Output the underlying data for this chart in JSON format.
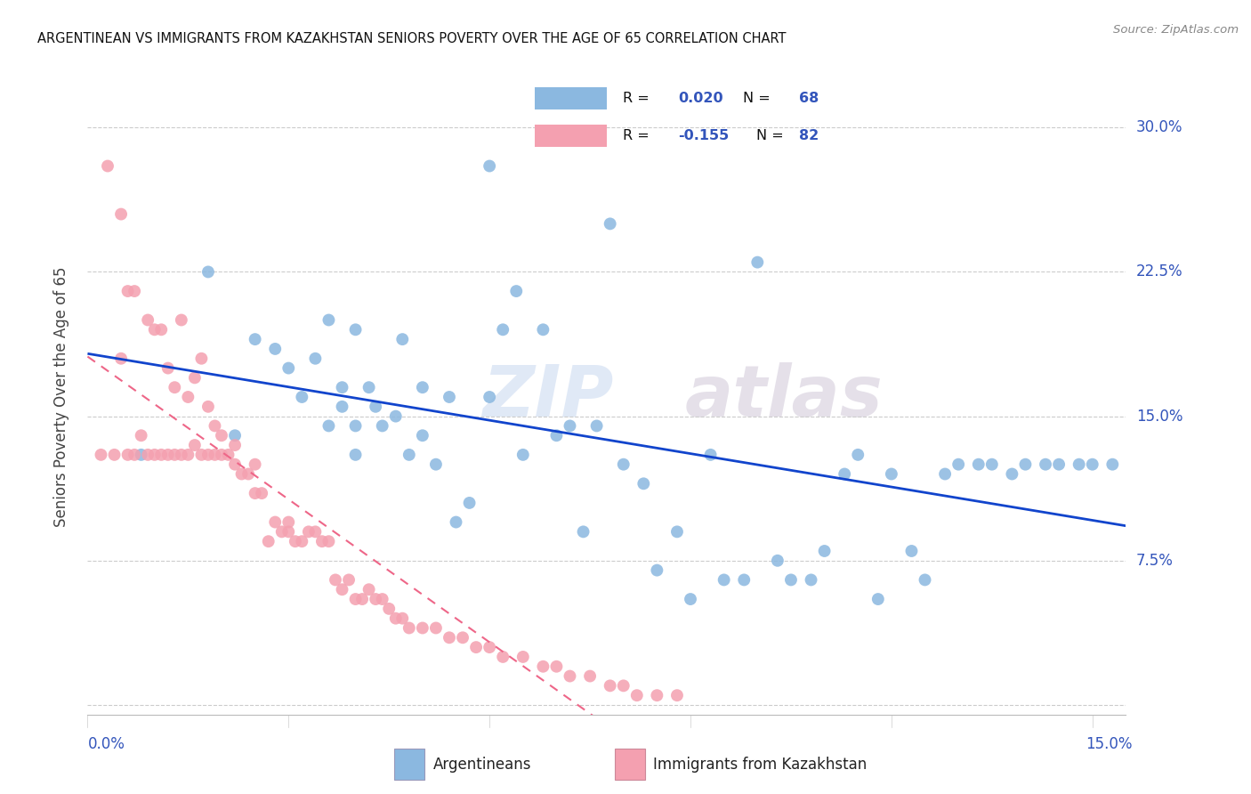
{
  "title": "ARGENTINEAN VS IMMIGRANTS FROM KAZAKHSTAN SENIORS POVERTY OVER THE AGE OF 65 CORRELATION CHART",
  "source": "Source: ZipAtlas.com",
  "ylabel": "Seniors Poverty Over the Age of 65",
  "y_ticks": [
    0.0,
    0.075,
    0.15,
    0.225,
    0.3
  ],
  "y_tick_labels": [
    "",
    "7.5%",
    "15.0%",
    "22.5%",
    "30.0%"
  ],
  "x_ticks": [
    0.0,
    0.15
  ],
  "x_tick_labels": [
    "0.0%",
    "15.0%"
  ],
  "x_range": [
    0.0,
    0.155
  ],
  "y_range": [
    -0.005,
    0.325
  ],
  "legend_r1_label": "R = ",
  "legend_r1_val": "0.020",
  "legend_n1_label": "N = ",
  "legend_n1_val": "68",
  "legend_r2_label": "R = ",
  "legend_r2_val": "-0.155",
  "legend_n2_label": "N = ",
  "legend_n2_val": "82",
  "color_blue": "#8BB8E0",
  "color_blue_dark": "#8BB8E0",
  "color_blue_line": "#1144CC",
  "color_pink": "#F4A0B0",
  "color_pink_line": "#EE6688",
  "color_accent": "#3355BB",
  "watermark_zip": "ZIP",
  "watermark_atlas": "atlas",
  "bottom_legend_blue": "Argentineans",
  "bottom_legend_pink": "Immigrants from Kazakhstan",
  "arg_x": [
    0.008,
    0.018,
    0.022,
    0.025,
    0.028,
    0.03,
    0.032,
    0.034,
    0.036,
    0.036,
    0.038,
    0.038,
    0.04,
    0.04,
    0.04,
    0.042,
    0.043,
    0.044,
    0.046,
    0.047,
    0.048,
    0.05,
    0.05,
    0.052,
    0.054,
    0.055,
    0.057,
    0.06,
    0.06,
    0.062,
    0.064,
    0.065,
    0.068,
    0.07,
    0.072,
    0.074,
    0.076,
    0.078,
    0.08,
    0.083,
    0.085,
    0.088,
    0.09,
    0.093,
    0.095,
    0.098,
    0.1,
    0.103,
    0.105,
    0.108,
    0.11,
    0.113,
    0.115,
    0.118,
    0.12,
    0.123,
    0.125,
    0.128,
    0.13,
    0.133,
    0.135,
    0.138,
    0.14,
    0.143,
    0.145,
    0.148,
    0.15,
    0.153
  ],
  "arg_y": [
    0.13,
    0.225,
    0.14,
    0.19,
    0.185,
    0.175,
    0.16,
    0.18,
    0.145,
    0.2,
    0.155,
    0.165,
    0.13,
    0.145,
    0.195,
    0.165,
    0.155,
    0.145,
    0.15,
    0.19,
    0.13,
    0.14,
    0.165,
    0.125,
    0.16,
    0.095,
    0.105,
    0.16,
    0.28,
    0.195,
    0.215,
    0.13,
    0.195,
    0.14,
    0.145,
    0.09,
    0.145,
    0.25,
    0.125,
    0.115,
    0.07,
    0.09,
    0.055,
    0.13,
    0.065,
    0.065,
    0.23,
    0.075,
    0.065,
    0.065,
    0.08,
    0.12,
    0.13,
    0.055,
    0.12,
    0.08,
    0.065,
    0.12,
    0.125,
    0.125,
    0.125,
    0.12,
    0.125,
    0.125,
    0.125,
    0.125,
    0.125,
    0.125
  ],
  "kaz_x": [
    0.002,
    0.003,
    0.004,
    0.005,
    0.005,
    0.006,
    0.006,
    0.007,
    0.007,
    0.008,
    0.009,
    0.009,
    0.01,
    0.01,
    0.011,
    0.011,
    0.012,
    0.012,
    0.013,
    0.013,
    0.014,
    0.014,
    0.015,
    0.015,
    0.016,
    0.016,
    0.017,
    0.017,
    0.018,
    0.018,
    0.019,
    0.019,
    0.02,
    0.02,
    0.021,
    0.022,
    0.022,
    0.023,
    0.024,
    0.025,
    0.025,
    0.026,
    0.027,
    0.028,
    0.029,
    0.03,
    0.03,
    0.031,
    0.032,
    0.033,
    0.034,
    0.035,
    0.036,
    0.037,
    0.038,
    0.039,
    0.04,
    0.041,
    0.042,
    0.043,
    0.044,
    0.045,
    0.046,
    0.047,
    0.048,
    0.05,
    0.052,
    0.054,
    0.056,
    0.058,
    0.06,
    0.062,
    0.065,
    0.068,
    0.07,
    0.072,
    0.075,
    0.078,
    0.08,
    0.082,
    0.085,
    0.088
  ],
  "kaz_y": [
    0.13,
    0.28,
    0.13,
    0.18,
    0.255,
    0.13,
    0.215,
    0.13,
    0.215,
    0.14,
    0.13,
    0.2,
    0.13,
    0.195,
    0.13,
    0.195,
    0.13,
    0.175,
    0.13,
    0.165,
    0.13,
    0.2,
    0.13,
    0.16,
    0.135,
    0.17,
    0.13,
    0.18,
    0.13,
    0.155,
    0.13,
    0.145,
    0.13,
    0.14,
    0.13,
    0.125,
    0.135,
    0.12,
    0.12,
    0.11,
    0.125,
    0.11,
    0.085,
    0.095,
    0.09,
    0.09,
    0.095,
    0.085,
    0.085,
    0.09,
    0.09,
    0.085,
    0.085,
    0.065,
    0.06,
    0.065,
    0.055,
    0.055,
    0.06,
    0.055,
    0.055,
    0.05,
    0.045,
    0.045,
    0.04,
    0.04,
    0.04,
    0.035,
    0.035,
    0.03,
    0.03,
    0.025,
    0.025,
    0.02,
    0.02,
    0.015,
    0.015,
    0.01,
    0.01,
    0.005,
    0.005,
    0.005
  ]
}
